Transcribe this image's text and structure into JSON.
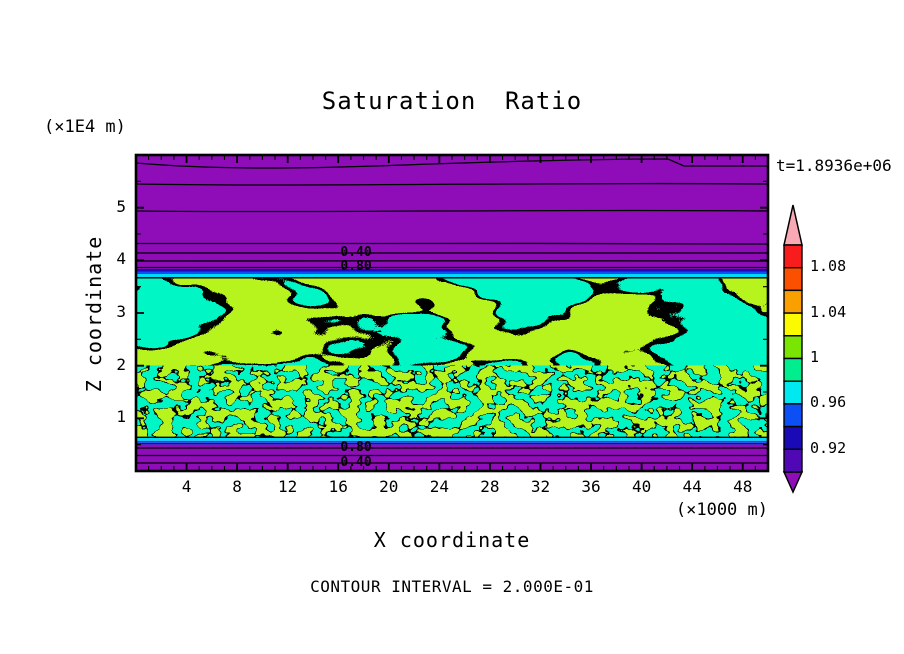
{
  "chart_data": {
    "type": "heatmap",
    "subtype": "filled-contour",
    "title": "Saturation Ratio",
    "time_annotation": "t=1.8936e+06",
    "xlabel": "X coordinate",
    "ylabel": "Z coordinate",
    "x_unit": "(×1000 m)",
    "y_unit": "(×1E4 m)",
    "xlim": [
      0,
      50
    ],
    "ylim": [
      0,
      6
    ],
    "x_ticks": [
      4,
      8,
      12,
      16,
      20,
      24,
      28,
      32,
      36,
      40,
      44,
      48
    ],
    "y_ticks": [
      1,
      2,
      3,
      4,
      5
    ],
    "contour_interval_text": "CONTOUR INTERVAL = 2.000E-01",
    "contour_labels_top": [
      "0.40",
      "0.80"
    ],
    "contour_labels_bottom": [
      "0.80",
      "0.40"
    ],
    "colorbar": {
      "tick_labels": [
        "1.08",
        "1.04",
        "1",
        "0.96",
        "0.92"
      ],
      "level_boundaries_top_to_bottom": [
        1.1,
        1.08,
        1.06,
        1.04,
        1.02,
        1.0,
        0.98,
        0.96,
        0.94,
        0.92,
        0.9
      ],
      "over_arrow": "pink (> 1.10)",
      "under_arrow": "purple (< 0.90)"
    },
    "regions": [
      {
        "area": "top band",
        "fill": "purple",
        "z_extent": [
          3.85,
          6.0
        ],
        "meaning": "saturation < 0.90, horizontal line contours labeled 0.40 and 0.80"
      },
      {
        "area": "top transition",
        "fill": "navy/blue/cyan thin strips",
        "z_extent": [
          3.7,
          3.85
        ],
        "meaning": "0.92–0.98"
      },
      {
        "area": "middle band",
        "fill": "speckled chartreuse and spring green",
        "z_extent": [
          0.65,
          3.7
        ],
        "meaning": "saturation ≈ 0.98–1.02, mottled turbulent field"
      },
      {
        "area": "bottom transition",
        "fill": "cyan/blue/navy thin strips",
        "z_extent": [
          0.5,
          0.65
        ],
        "meaning": "0.92–0.98"
      },
      {
        "area": "bottom band",
        "fill": "purple",
        "z_extent": [
          0,
          0.5
        ],
        "meaning": "saturation < 0.90, line contours labeled 0.80 and 0.40"
      }
    ]
  },
  "colors": {
    "purple": "#8E0DB8",
    "chartreuse": "#7AE503",
    "spring_green": "#00EE8E",
    "cyan": "#00D9F8",
    "blue": "#0B4FF5",
    "navy": "#1A0AB5",
    "axis_black": "#000000",
    "over": "#F9A9B4",
    "under": "#8E0DB8",
    "colorbar": [
      "#F91C1C",
      "#FB5000",
      "#F9A000",
      "#FCFA00",
      "#7AE503",
      "#00EE8E",
      "#00E8F0",
      "#0B4FF5",
      "#1A0AB5",
      "#5008B4"
    ]
  }
}
